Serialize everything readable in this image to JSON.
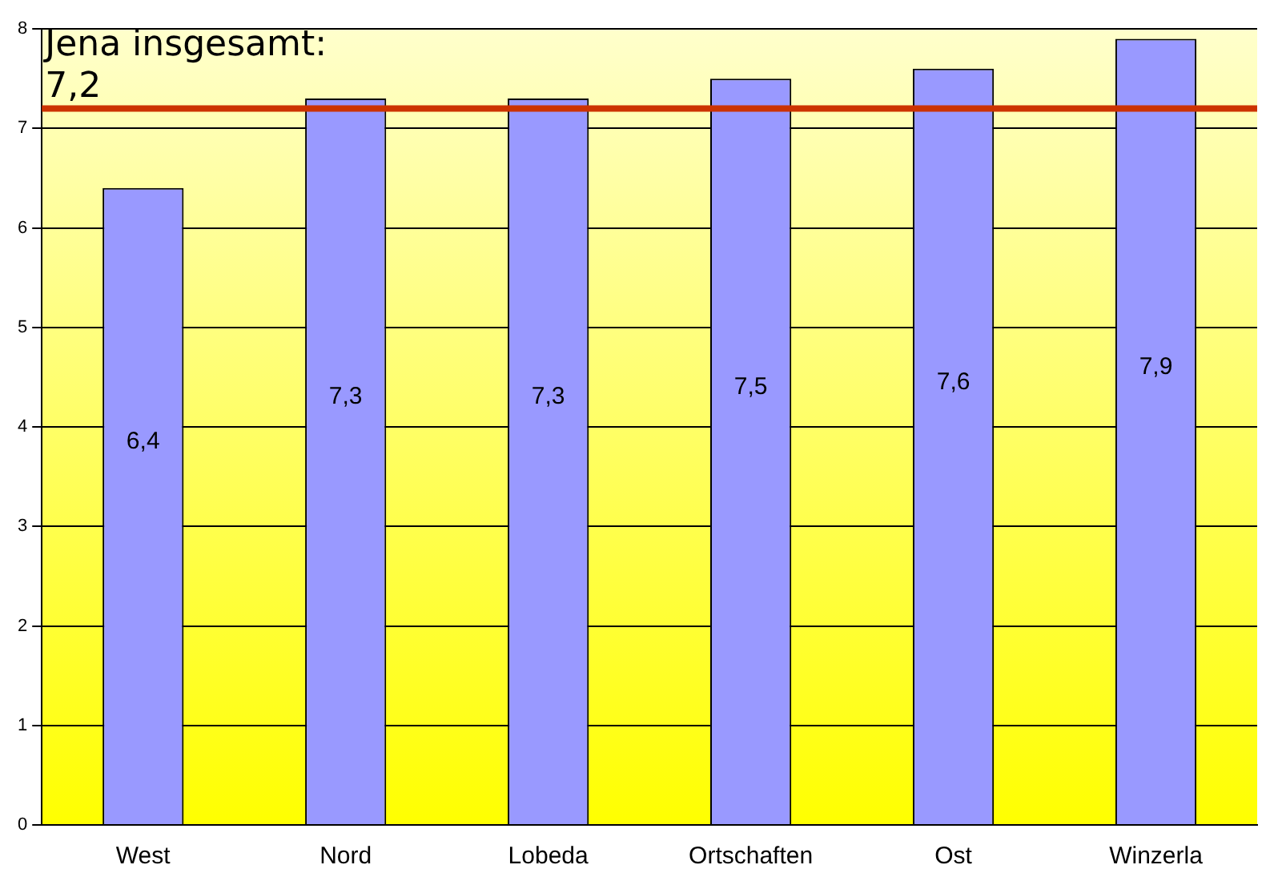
{
  "chart_data": {
    "type": "bar",
    "categories": [
      "West",
      "Nord",
      "Lobeda",
      "Ortschaften",
      "Ost",
      "Winzerla"
    ],
    "values": [
      6.4,
      7.3,
      7.3,
      7.5,
      7.6,
      7.9
    ],
    "value_labels": [
      "6,4",
      "7,3",
      "7,3",
      "7,5",
      "7,6",
      "7,9"
    ],
    "color": "#9999ff",
    "ylim": [
      0,
      8
    ],
    "yticks": [
      0,
      1,
      2,
      3,
      4,
      5,
      6,
      7,
      8
    ],
    "grid": "y",
    "legend": false,
    "ref_lines": [
      {
        "axis": "y",
        "value": 7.2,
        "label": "Jena insgesamt: 7,2",
        "color": "#cc3300"
      }
    ]
  }
}
